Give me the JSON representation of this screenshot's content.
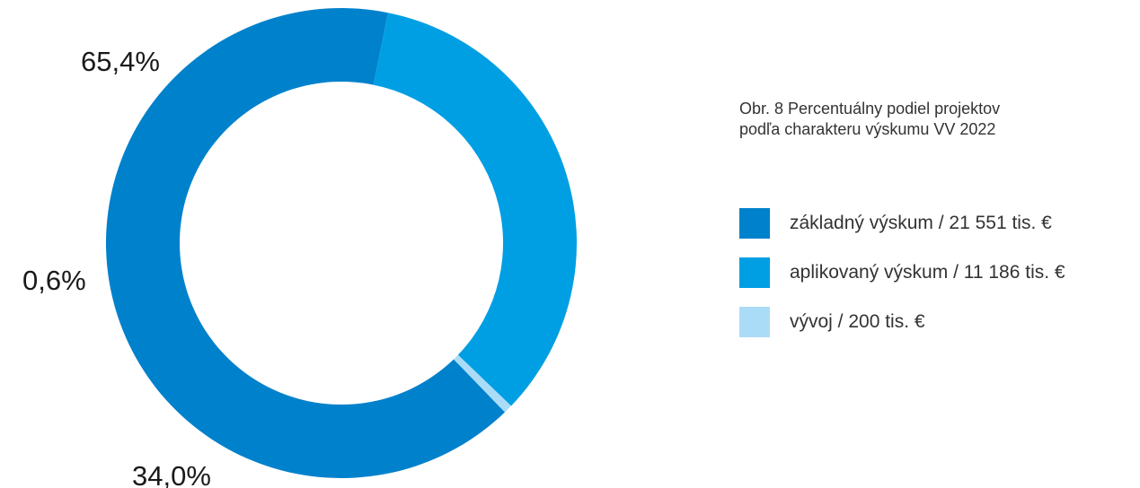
{
  "caption": {
    "line1": "Obr. 8 Percentuálny podiel projektov",
    "line2": "podľa charakteru výskumu VV 2022"
  },
  "chart_data": {
    "type": "pie",
    "variant": "donut",
    "title": "Obr. 8 Percentuálny podiel projektov podľa charakteru výskumu VV 2022",
    "legend_position": "right",
    "slices": [
      {
        "name": "základný výskum / 21 551 tis. €",
        "value": 65.4,
        "label": "65,4%",
        "color": "#0081cc"
      },
      {
        "name": "aplikovaný výskum / 11 186 tis. €",
        "value": 34.0,
        "label": "34,0%",
        "color": "#009fe3"
      },
      {
        "name": "vývoj / 200 tis. €",
        "value": 0.6,
        "label": "0,6%",
        "color": "#abdcf7"
      }
    ]
  }
}
